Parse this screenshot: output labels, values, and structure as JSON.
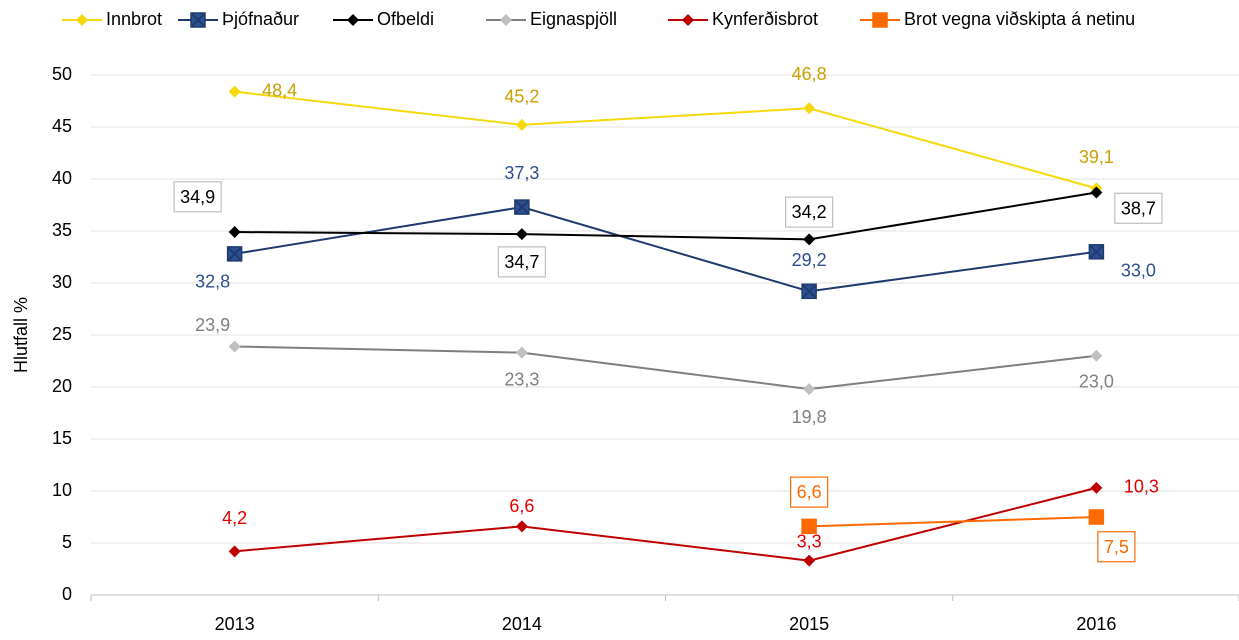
{
  "chart_data": {
    "type": "line",
    "y_label": "Hlutfall %",
    "categories": [
      "2013",
      "2014",
      "2015",
      "2016"
    ],
    "ylim": [
      0,
      50
    ],
    "yticks": [
      0,
      5,
      10,
      15,
      20,
      25,
      30,
      35,
      40,
      45,
      50
    ],
    "grid": true,
    "legend": "top",
    "series": [
      {
        "name": "Innbrot",
        "color": "#f5d90a",
        "marker": "diamond",
        "marker_color": "#f5d90a",
        "label_color": "#c9a000",
        "boxed": false,
        "values": [
          48.4,
          45.2,
          46.8,
          39.1
        ],
        "value_labels": [
          "48,4",
          "45,2",
          "46,8",
          "39,1"
        ]
      },
      {
        "name": "Þjófnaður",
        "color": "#1f3b6e",
        "marker": "square-x",
        "marker_color": "#2e5092",
        "label_color": "#2e4f8f",
        "boxed": false,
        "values": [
          32.8,
          37.3,
          29.2,
          33.0
        ],
        "value_labels": [
          "32,8",
          "37,3",
          "29,2",
          "33,0"
        ]
      },
      {
        "name": "Ofbeldi",
        "color": "#000000",
        "marker": "diamond",
        "marker_color": "#000000",
        "label_color": "#000000",
        "boxed": true,
        "values": [
          34.9,
          34.7,
          34.2,
          38.7
        ],
        "value_labels": [
          "34,9",
          "34,7",
          "34,2",
          "38,7"
        ]
      },
      {
        "name": "Eignaspjöll",
        "color": "#7f7f7f",
        "marker": "diamond",
        "marker_color": "#bfbfbf",
        "label_color": "#7f7f7f",
        "boxed": false,
        "values": [
          23.9,
          23.3,
          19.8,
          23.0
        ],
        "value_labels": [
          "23,9",
          "23,3",
          "19,8",
          "23,0"
        ]
      },
      {
        "name": "Kynferðisbrot",
        "color": "#c00000",
        "marker": "diamond",
        "marker_color": "#c00000",
        "label_color": "#e00000",
        "boxed": false,
        "values": [
          4.2,
          6.6,
          3.3,
          10.3
        ],
        "value_labels": [
          "4,2",
          "6,6",
          "3,3",
          "10,3"
        ]
      },
      {
        "name": "Brot vegna viðskipta á netinu",
        "color": "#ff6a00",
        "marker": "square",
        "marker_color": "#ff6a00",
        "label_color": "#ff6a00",
        "boxed": true,
        "values": [
          null,
          null,
          6.6,
          7.5
        ],
        "value_labels": [
          null,
          null,
          "6,6",
          "7,5"
        ]
      }
    ]
  }
}
